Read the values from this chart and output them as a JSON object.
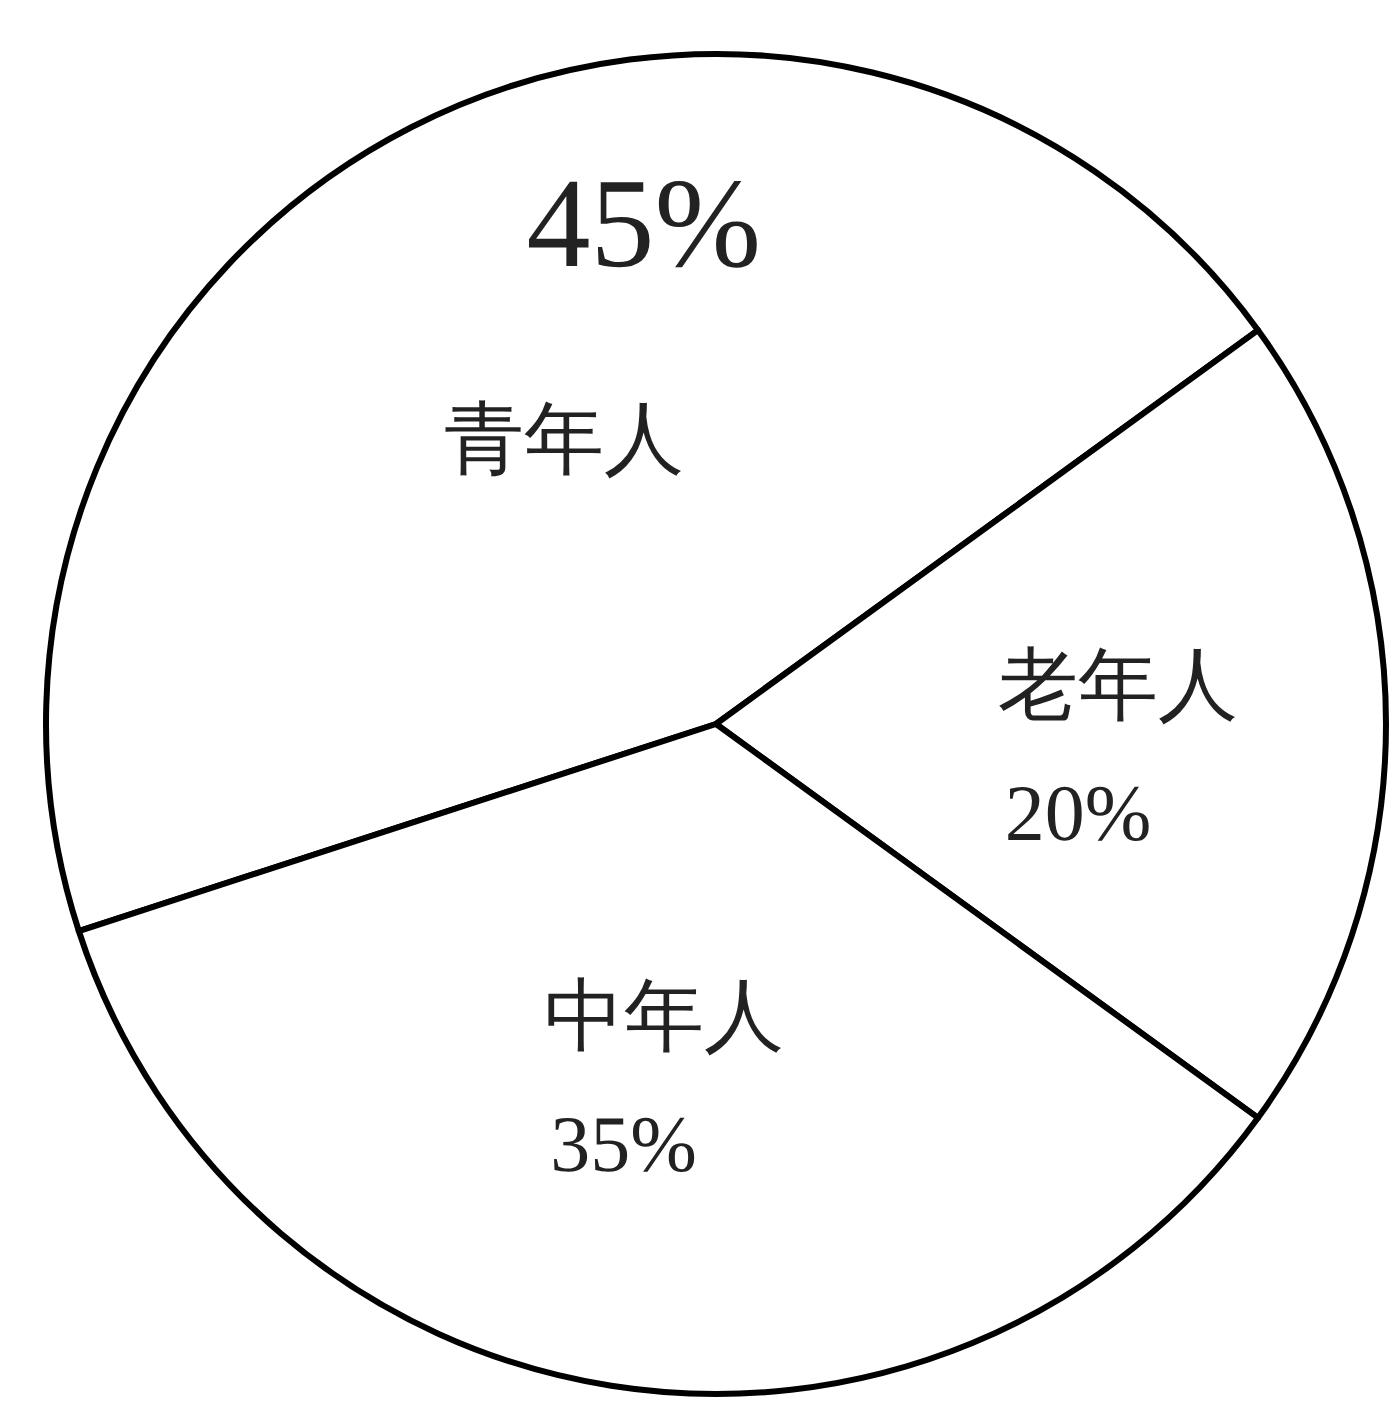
{
  "chart_data": {
    "type": "pie",
    "categories": [
      "青年人",
      "老年人",
      "中年人"
    ],
    "values": [
      45,
      20,
      35
    ],
    "value_labels": [
      "45%",
      "20%",
      "35%"
    ],
    "colors": [
      "#ffffff",
      "#ffffff",
      "#ffffff"
    ]
  }
}
